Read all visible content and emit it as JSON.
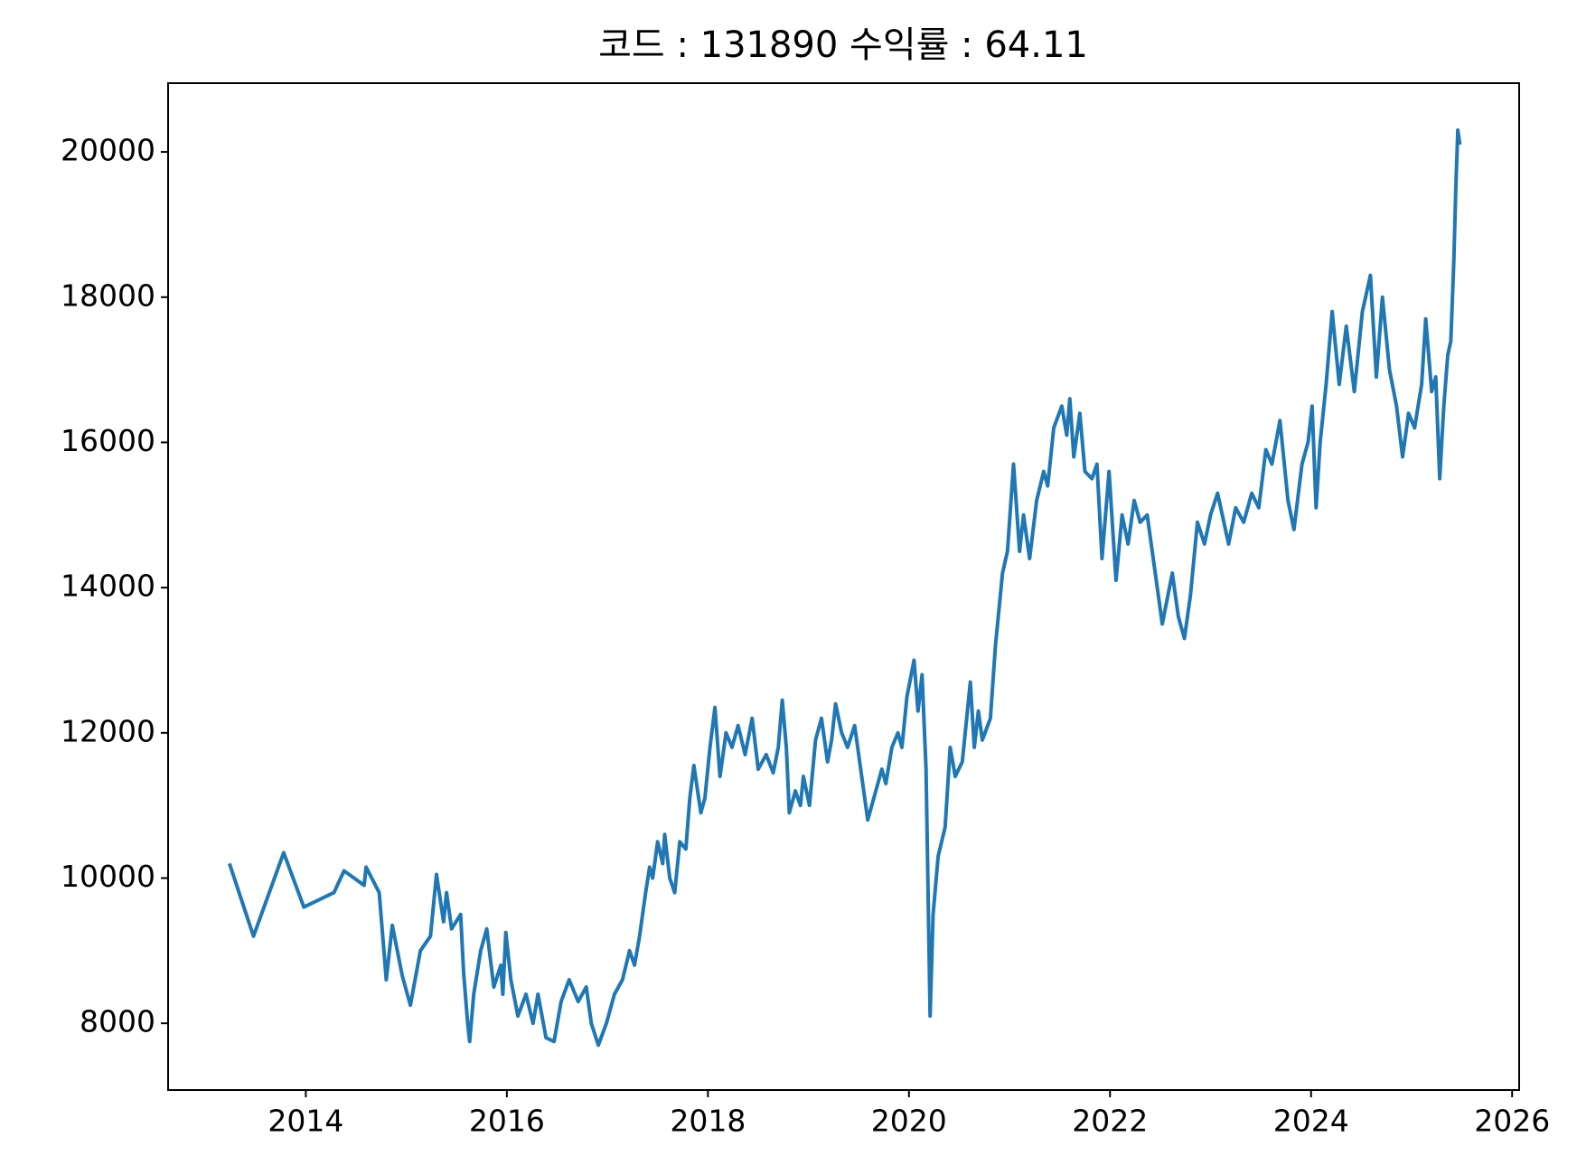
{
  "chart_data": {
    "type": "line",
    "title": "코드 : 131890 수익률 : 64.11",
    "x": [
      2013.24,
      2013.48,
      2013.78,
      2013.98,
      2014.28,
      2014.38,
      2014.58,
      2014.6,
      2014.73,
      2014.8,
      2014.86,
      2014.96,
      2015.04,
      2015.14,
      2015.24,
      2015.3,
      2015.37,
      2015.4,
      2015.45,
      2015.54,
      2015.57,
      2015.61,
      2015.63,
      2015.67,
      2015.74,
      2015.8,
      2015.87,
      2015.94,
      2015.96,
      2015.99,
      2016.04,
      2016.11,
      2016.19,
      2016.26,
      2016.31,
      2016.39,
      2016.47,
      2016.54,
      2016.62,
      2016.71,
      2016.79,
      2016.84,
      2016.91,
      2016.99,
      2017.07,
      2017.15,
      2017.22,
      2017.27,
      2017.32,
      2017.38,
      2017.42,
      2017.45,
      2017.5,
      2017.55,
      2017.57,
      2017.62,
      2017.67,
      2017.72,
      2017.78,
      2017.82,
      2017.86,
      2017.93,
      2017.97,
      2018.02,
      2018.07,
      2018.12,
      2018.18,
      2018.24,
      2018.3,
      2018.37,
      2018.44,
      2018.5,
      2018.58,
      2018.65,
      2018.7,
      2018.74,
      2018.78,
      2018.81,
      2018.87,
      2018.92,
      2018.95,
      2019.01,
      2019.07,
      2019.13,
      2019.19,
      2019.23,
      2019.27,
      2019.33,
      2019.39,
      2019.46,
      2019.53,
      2019.59,
      2019.67,
      2019.73,
      2019.77,
      2019.83,
      2019.89,
      2019.93,
      2019.98,
      2020.05,
      2020.09,
      2020.13,
      2020.17,
      2020.21,
      2020.24,
      2020.29,
      2020.36,
      2020.41,
      2020.46,
      2020.53,
      2020.61,
      2020.65,
      2020.69,
      2020.73,
      2020.81,
      2020.86,
      2020.93,
      2020.98,
      2021.04,
      2021.1,
      2021.14,
      2021.2,
      2021.27,
      2021.34,
      2021.38,
      2021.44,
      2021.52,
      2021.57,
      2021.6,
      2021.64,
      2021.7,
      2021.75,
      2021.82,
      2021.87,
      2021.92,
      2021.99,
      2022.06,
      2022.12,
      2022.18,
      2022.24,
      2022.3,
      2022.37,
      2022.44,
      2022.52,
      2022.62,
      2022.68,
      2022.74,
      2022.8,
      2022.87,
      2022.94,
      2023.0,
      2023.07,
      2023.18,
      2023.25,
      2023.33,
      2023.41,
      2023.48,
      2023.55,
      2023.61,
      2023.69,
      2023.77,
      2023.83,
      2023.91,
      2023.97,
      2024.01,
      2024.05,
      2024.09,
      2024.15,
      2024.21,
      2024.28,
      2024.35,
      2024.43,
      2024.51,
      2024.59,
      2024.65,
      2024.71,
      2024.78,
      2024.85,
      2024.91,
      2024.97,
      2025.03,
      2025.1,
      2025.14,
      2025.2,
      2025.24,
      2025.28,
      2025.32,
      2025.36,
      2025.39,
      2025.42,
      2025.44,
      2025.46,
      2025.48
    ],
    "series": [
      {
        "color": "#1f77b4",
        "values": [
          10200,
          9200,
          10350,
          9600,
          9800,
          10100,
          9900,
          10150,
          9800,
          8600,
          9350,
          8650,
          8250,
          9000,
          9200,
          10050,
          9400,
          9800,
          9300,
          9500,
          8700,
          8000,
          7750,
          8400,
          9000,
          9300,
          8500,
          8800,
          8400,
          9250,
          8600,
          8100,
          8400,
          8000,
          8400,
          7800,
          7750,
          8300,
          8600,
          8300,
          8500,
          8000,
          7700,
          8000,
          8400,
          8600,
          9000,
          8800,
          9200,
          9800,
          10150,
          10000,
          10500,
          10200,
          10600,
          10000,
          9800,
          10500,
          10400,
          11100,
          11550,
          10900,
          11100,
          11800,
          12350,
          11400,
          12000,
          11800,
          12100,
          11700,
          12200,
          11500,
          11700,
          11450,
          11800,
          12450,
          11800,
          10900,
          11200,
          11000,
          11400,
          11000,
          11900,
          12200,
          11600,
          11900,
          12400,
          12000,
          11800,
          12100,
          11400,
          10800,
          11200,
          11500,
          11300,
          11800,
          12000,
          11800,
          12500,
          13000,
          12300,
          12800,
          11500,
          8100,
          9500,
          10300,
          10700,
          11800,
          11400,
          11600,
          12700,
          11800,
          12300,
          11900,
          12200,
          13200,
          14200,
          14500,
          15700,
          14500,
          15000,
          14400,
          15200,
          15600,
          15400,
          16200,
          16500,
          16100,
          16600,
          15800,
          16400,
          15600,
          15500,
          15700,
          14400,
          15600,
          14100,
          15000,
          14600,
          15200,
          14900,
          15000,
          14300,
          13500,
          14200,
          13600,
          13300,
          13900,
          14900,
          14600,
          15000,
          15300,
          14600,
          15100,
          14900,
          15300,
          15100,
          15900,
          15700,
          16300,
          15200,
          14800,
          15700,
          16000,
          16500,
          15100,
          16000,
          16800,
          17800,
          16800,
          17600,
          16700,
          17800,
          18300,
          16900,
          18000,
          17000,
          16500,
          15800,
          16400,
          16200,
          16800,
          17700,
          16700,
          16900,
          15500,
          16500,
          17200,
          17400,
          18500,
          19500,
          20300,
          20100
        ]
      }
    ],
    "xlim": [
      2012.63,
      2026.07
    ],
    "ylim": [
      7081,
      20947
    ],
    "xticks": [
      2014,
      2016,
      2018,
      2020,
      2022,
      2024,
      2026
    ],
    "yticks": [
      8000,
      10000,
      12000,
      14000,
      16000,
      18000,
      20000
    ]
  }
}
